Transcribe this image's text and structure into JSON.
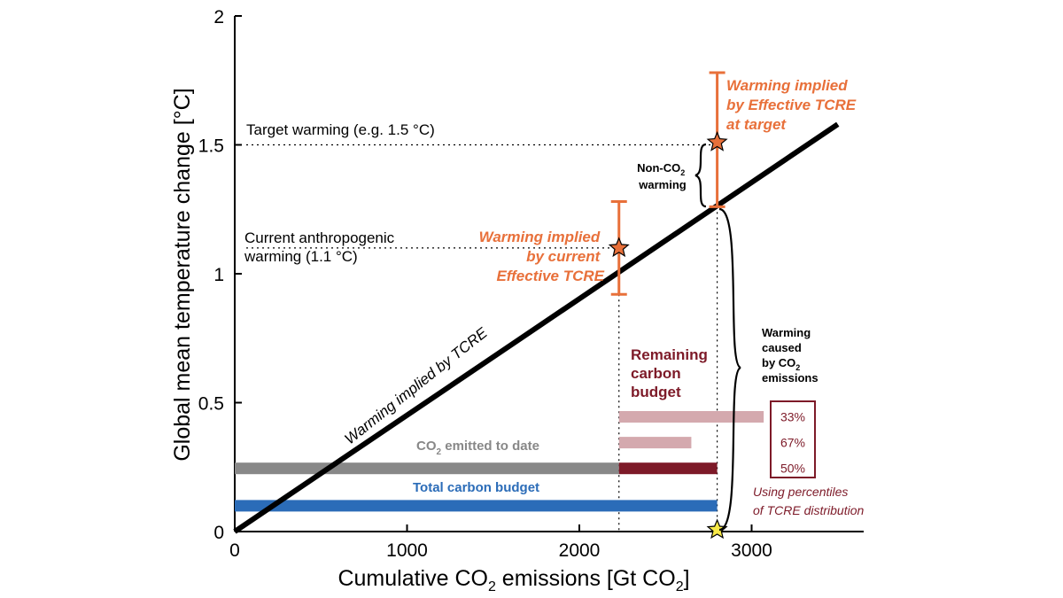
{
  "chart_data": {
    "type": "line",
    "title": "",
    "xlabel": {
      "pre": "Cumulative CO",
      "sub": "2",
      "post": " emissions [Gt CO",
      "sub2": "2",
      "end": "]"
    },
    "ylabel": "Global mean temperature change [°C]",
    "xlim": [
      0,
      3500
    ],
    "ylim": [
      0,
      2
    ],
    "xticks": [
      0,
      1000,
      2000,
      3000
    ],
    "xtick_labels": [
      "0",
      "1000",
      "2000",
      "3000"
    ],
    "yticks": [
      0,
      0.5,
      1,
      1.5,
      2
    ],
    "ytick_labels": [
      "0",
      "0.5",
      "1",
      "1.5",
      "2"
    ],
    "grid": false,
    "tcre_line": {
      "label": "Warming implied by TCRE",
      "x": [
        0,
        3500
      ],
      "y": [
        0,
        1.58
      ]
    },
    "current_x": 2230,
    "target_x": 2800,
    "target_warming": {
      "label": "Target warming  (e.g. 1.5 °C)",
      "y": 1.5
    },
    "current_warming": {
      "label_lines": [
        "Current anthropogenic",
        "warming (1.1 °C)"
      ],
      "y": 1.1
    },
    "current_tcre": {
      "label_lines": [
        "Warming implied",
        "by current",
        "Effective TCRE"
      ],
      "star_y": 1.1,
      "low": 0.92,
      "high": 1.28
    },
    "target_tcre": {
      "label_lines": [
        "Warming implied",
        "by Effective TCRE",
        "at target"
      ],
      "star_y": 1.51,
      "low": 1.26,
      "high": 1.78
    },
    "non_co2": {
      "lines": [
        [
          "Non-CO",
          "2"
        ],
        [
          "warming",
          ""
        ]
      ]
    },
    "warming_co2": {
      "lines": [
        [
          "Warming",
          ""
        ],
        [
          "caused",
          ""
        ],
        [
          "by CO",
          "2"
        ],
        [
          "emissions",
          ""
        ]
      ]
    },
    "remaining_budget": {
      "label_lines": [
        "Remaining",
        "carbon",
        "budget"
      ],
      "bars": [
        {
          "label": "33%",
          "y": 0.445,
          "x_end": 3070,
          "color": "#d4a9ae"
        },
        {
          "label": "67%",
          "y": 0.345,
          "x_end": 2650,
          "color": "#d4a9ae"
        },
        {
          "label": "50%",
          "y": 0.245,
          "x_end": 2800,
          "color": "#7d1a28"
        }
      ],
      "note_lines": [
        "Using percentiles",
        "of TCRE distribution"
      ]
    },
    "emitted_to_date": {
      "label": [
        "CO",
        "2",
        " emitted to date"
      ],
      "y": 0.245,
      "x_end": 2230
    },
    "total_budget": {
      "label": "Total carbon budget",
      "y": 0.1,
      "x_end": 2800
    },
    "colors": {
      "line": "#000000",
      "orange": "#e8703a",
      "maroon": "#7d1a28",
      "pink": "#d4a9ae",
      "gray": "#888888",
      "blue": "#2b6cb8",
      "yellow": "#f7e948"
    }
  }
}
